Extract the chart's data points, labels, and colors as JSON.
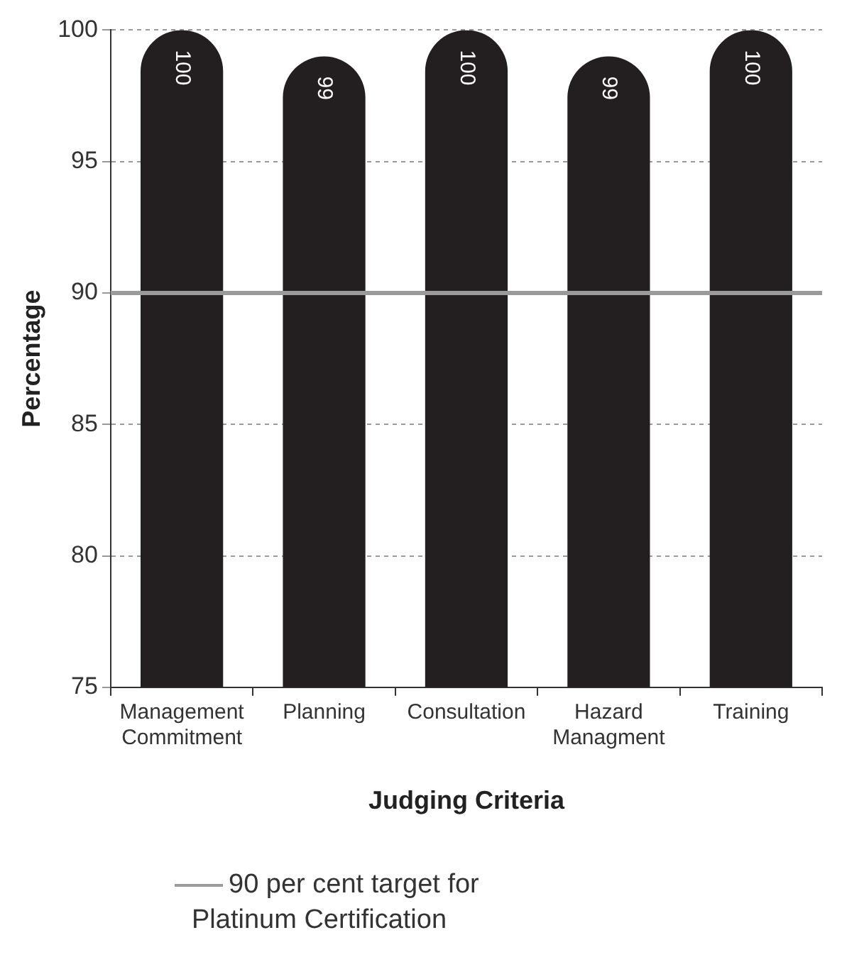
{
  "chart_data": {
    "type": "bar",
    "xlabel": "Judging Criteria",
    "ylabel": "Percentage",
    "categories": [
      "Management Commitment",
      "Planning",
      "Consultation",
      "Hazard Managment",
      "Training"
    ],
    "values": [
      100,
      99,
      100,
      99,
      100
    ],
    "color": "#231f20",
    "data_labels": true,
    "ylim": [
      75,
      100
    ],
    "yticks": [
      75,
      80,
      85,
      90,
      95,
      100
    ],
    "grid": "y",
    "legend": "bottom",
    "ref_lines": [
      {
        "axis": "y",
        "value": 90,
        "label": "90 per cent target for Platinum Certification",
        "color": "#9a9a9a"
      }
    ]
  }
}
